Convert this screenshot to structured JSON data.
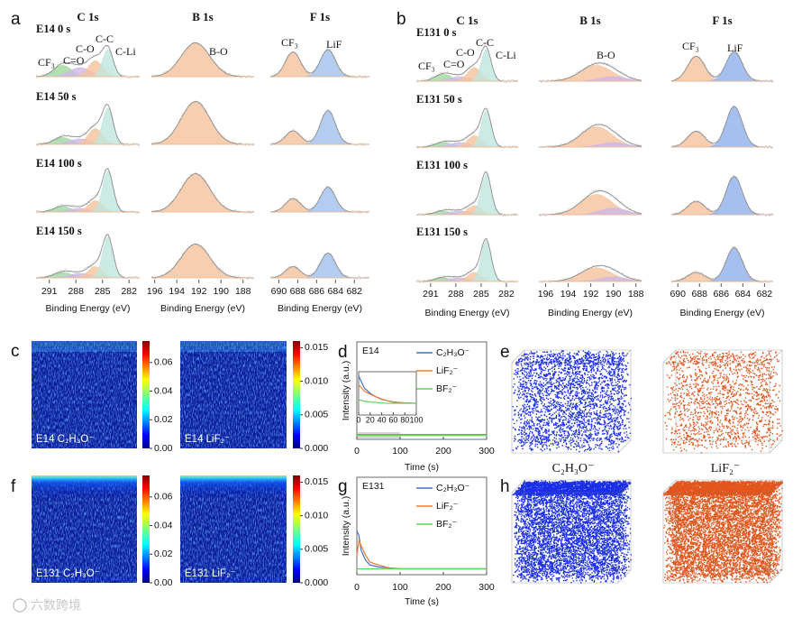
{
  "panel_labels": [
    "a",
    "b",
    "c",
    "d",
    "e",
    "f",
    "g",
    "h"
  ],
  "xps": [
    {
      "samples": [
        "E14 0 s",
        "E14 50 s",
        "E14 100 s",
        "E14 150 s"
      ],
      "columns": [
        {
          "title": "C 1s",
          "xlabel": "Binding Energy (eV)",
          "xlim": [
            292.5,
            280.8
          ],
          "xticks": [
            291,
            288,
            285,
            282
          ],
          "peak_labels": [
            "CF₃",
            "C=O",
            "C-O",
            "C-C",
            "C-Li"
          ],
          "components": [
            {
              "color": "#9fd89f",
              "center": 289.5,
              "width": 1.0
            },
            {
              "color": "#cdb8e6",
              "center": 287.5,
              "width": 1.2
            },
            {
              "color": "#f6c29c",
              "center": 285.8,
              "width": 0.8
            },
            {
              "color": "#bfe6dd",
              "center": 284.4,
              "width": 0.6
            }
          ],
          "heights": [
            [
              0.25,
              0.2,
              0.35,
              0.6
            ],
            [
              0.15,
              0.12,
              0.35,
              0.8
            ],
            [
              0.12,
              0.08,
              0.25,
              0.9
            ],
            [
              0.12,
              0.1,
              0.25,
              0.9
            ]
          ]
        },
        {
          "title": "B 1s",
          "xlabel": "Binding Energy (eV)",
          "xlim": [
            196.3,
            187
          ],
          "xticks": [
            196,
            194,
            192,
            190,
            188
          ],
          "peak_labels": [
            "B-O"
          ],
          "components": [
            {
              "color": "#f6c29c",
              "center": 192.3,
              "width": 1.3
            }
          ],
          "heights": [
            [
              0.75
            ],
            [
              0.95
            ],
            [
              0.85
            ],
            [
              0.75
            ]
          ]
        },
        {
          "title": "F 1s",
          "xlabel": "Binding Energy (eV)",
          "xlim": [
            690.9,
            680.4
          ],
          "xticks": [
            690,
            688,
            686,
            684,
            682
          ],
          "peak_labels": [
            "CF₃",
            "LiF"
          ],
          "components": [
            {
              "color": "#f6c29c",
              "center": 688.5,
              "width": 0.8
            },
            {
              "color": "#a3bfee",
              "center": 684.8,
              "width": 0.8
            }
          ],
          "heights": [
            [
              0.55,
              0.6
            ],
            [
              0.3,
              0.75
            ],
            [
              0.3,
              0.55
            ],
            [
              0.25,
              0.55
            ]
          ]
        }
      ]
    },
    {
      "samples": [
        "E131 0 s",
        "E131 50 s",
        "E131 100 s",
        "E131 150 s"
      ],
      "columns": [
        {
          "title": "C 1s",
          "xlabel": "Binding Energy (eV)",
          "xlim": [
            292.7,
            280.6
          ],
          "xticks": [
            291,
            288,
            285,
            282
          ],
          "peak_labels": [
            "CF₃",
            "C=O",
            "C-O",
            "C-C",
            "C-Li"
          ],
          "components": [
            {
              "color": "#9fd89f",
              "center": 289.5,
              "width": 1.0
            },
            {
              "color": "#cdb8e6",
              "center": 287.5,
              "width": 1.2
            },
            {
              "color": "#f6c29c",
              "center": 285.8,
              "width": 0.8
            },
            {
              "color": "#bfe6dd",
              "center": 284.4,
              "width": 0.6
            }
          ],
          "heights": [
            [
              0.15,
              0.1,
              0.3,
              0.7
            ],
            [
              0.1,
              0.1,
              0.25,
              0.8
            ],
            [
              0.08,
              0.08,
              0.2,
              0.9
            ],
            [
              0.08,
              0.08,
              0.2,
              0.9
            ]
          ]
        },
        {
          "title": "B 1s",
          "xlabel": "Binding Energy (eV)",
          "xlim": [
            196.6,
            187.5
          ],
          "xticks": [
            196,
            194,
            192,
            190,
            188
          ],
          "peak_labels": [
            "B-O"
          ],
          "components": [
            {
              "color": "#f6c29c",
              "center": 191.5,
              "width": 1.4
            },
            {
              "color": "#cdb8e6",
              "center": 190,
              "width": 1.2
            }
          ],
          "heights": [
            [
              0.35,
              0.1
            ],
            [
              0.45,
              0.1
            ],
            [
              0.45,
              0.15
            ],
            [
              0.3,
              0.1
            ]
          ]
        },
        {
          "title": "F 1s",
          "xlabel": "Binding Energy (eV)",
          "xlim": [
            690.6,
            681.2
          ],
          "xticks": [
            690,
            688,
            686,
            684,
            682
          ],
          "peak_labels": [
            "CF₃",
            "LiF"
          ],
          "components": [
            {
              "color": "#f6c29c",
              "center": 688.3,
              "width": 0.8
            },
            {
              "color": "#8fb0ea",
              "center": 684.8,
              "width": 0.75
            }
          ],
          "heights": [
            [
              0.55,
              0.65
            ],
            [
              0.35,
              0.9
            ],
            [
              0.3,
              0.85
            ],
            [
              0.2,
              0.75
            ]
          ]
        }
      ]
    }
  ],
  "heatmaps": {
    "captions": [
      [
        "E14 C₂H₃O⁻",
        "E14 LiF₂⁻"
      ],
      [
        "E131 C₂H₃O⁻",
        "E131 LiF₂⁻"
      ]
    ],
    "colorbars": [
      {
        "ylim": [
          0,
          0.075
        ],
        "yticks": [
          {
            "value": 0,
            "label": "0.00"
          },
          {
            "value": 0.02,
            "label": "0.02"
          },
          {
            "value": 0.04,
            "label": "0.04"
          },
          {
            "value": 0.06,
            "label": "0.06"
          }
        ]
      },
      {
        "ylim": [
          0,
          0.016
        ],
        "yticks": [
          {
            "value": 0,
            "label": "0.000"
          },
          {
            "value": 0.005,
            "label": "0.005"
          },
          {
            "value": 0.01,
            "label": "0.010"
          },
          {
            "value": 0.015,
            "label": "0.015"
          }
        ]
      }
    ]
  },
  "chart_data": [
    {
      "type": "line",
      "title": "E14",
      "xlabel": "Time (s)",
      "ylabel": "Intensity (a.u.)",
      "x": [
        0,
        50,
        100,
        150,
        200,
        250,
        300
      ],
      "xlim": [
        0,
        300
      ],
      "ylim": [
        0,
        1
      ],
      "xticks": [
        0,
        100,
        200,
        300
      ],
      "shaded_range": [
        0,
        100
      ],
      "series": [
        {
          "name": "C₂H₃O⁻",
          "color": "#4472c4",
          "values": [
            0.05,
            0.05,
            0.05,
            0.05,
            0.05,
            0.05,
            0.05
          ]
        },
        {
          "name": "LiF₂⁻",
          "color": "#ed7d31",
          "values": [
            0.05,
            0.05,
            0.05,
            0.05,
            0.05,
            0.05,
            0.05
          ]
        },
        {
          "name": "BF₂⁻",
          "color": "#5dd55d",
          "values": [
            0.04,
            0.04,
            0.04,
            0.04,
            0.04,
            0.04,
            0.04
          ]
        }
      ]
    },
    {
      "type": "line",
      "x": [
        0,
        10,
        20,
        30,
        40,
        50,
        60,
        80,
        100
      ],
      "xlim": [
        0,
        100
      ],
      "ylim": [
        0,
        1
      ],
      "xticks": [
        0,
        20,
        40,
        60,
        80,
        100
      ],
      "series": [
        {
          "color": "#4472c4",
          "values": [
            0.9,
            0.62,
            0.5,
            0.42,
            0.36,
            0.33,
            0.3,
            0.28,
            0.27
          ]
        },
        {
          "color": "#ed7d31",
          "values": [
            0.7,
            0.55,
            0.48,
            0.42,
            0.37,
            0.33,
            0.3,
            0.28,
            0.27
          ]
        },
        {
          "color": "#5dd55d",
          "values": [
            0.35,
            0.32,
            0.3,
            0.29,
            0.28,
            0.27,
            0.27,
            0.27,
            0.27
          ]
        }
      ]
    },
    {
      "type": "line",
      "title": "E131",
      "xlabel": "Time (s)",
      "ylabel": "Intensity (a.u.)",
      "x": [
        0,
        5,
        10,
        20,
        30,
        50,
        75,
        100,
        150,
        200,
        250,
        300
      ],
      "xlim": [
        0,
        300
      ],
      "ylim": [
        0,
        1
      ],
      "xticks": [
        0,
        100,
        200,
        300
      ],
      "series": [
        {
          "name": "C₂H₃O⁻",
          "color": "#4472c4",
          "values": [
            0.45,
            0.4,
            0.25,
            0.15,
            0.1,
            0.08,
            0.07,
            0.06,
            0.06,
            0.06,
            0.06,
            0.06
          ]
        },
        {
          "name": "LiF₂⁻",
          "color": "#ed7d31",
          "values": [
            0.2,
            0.35,
            0.3,
            0.2,
            0.13,
            0.1,
            0.07,
            0.06,
            0.06,
            0.06,
            0.06,
            0.06
          ]
        },
        {
          "name": "BF₂⁻",
          "color": "#5dd55d",
          "values": [
            0.06,
            0.06,
            0.06,
            0.06,
            0.06,
            0.06,
            0.06,
            0.06,
            0.06,
            0.06,
            0.06,
            0.06
          ]
        }
      ]
    }
  ],
  "volume_labels": [
    "C₂H₃O⁻",
    "LiF₂⁻"
  ],
  "watermark": "六数跨境"
}
